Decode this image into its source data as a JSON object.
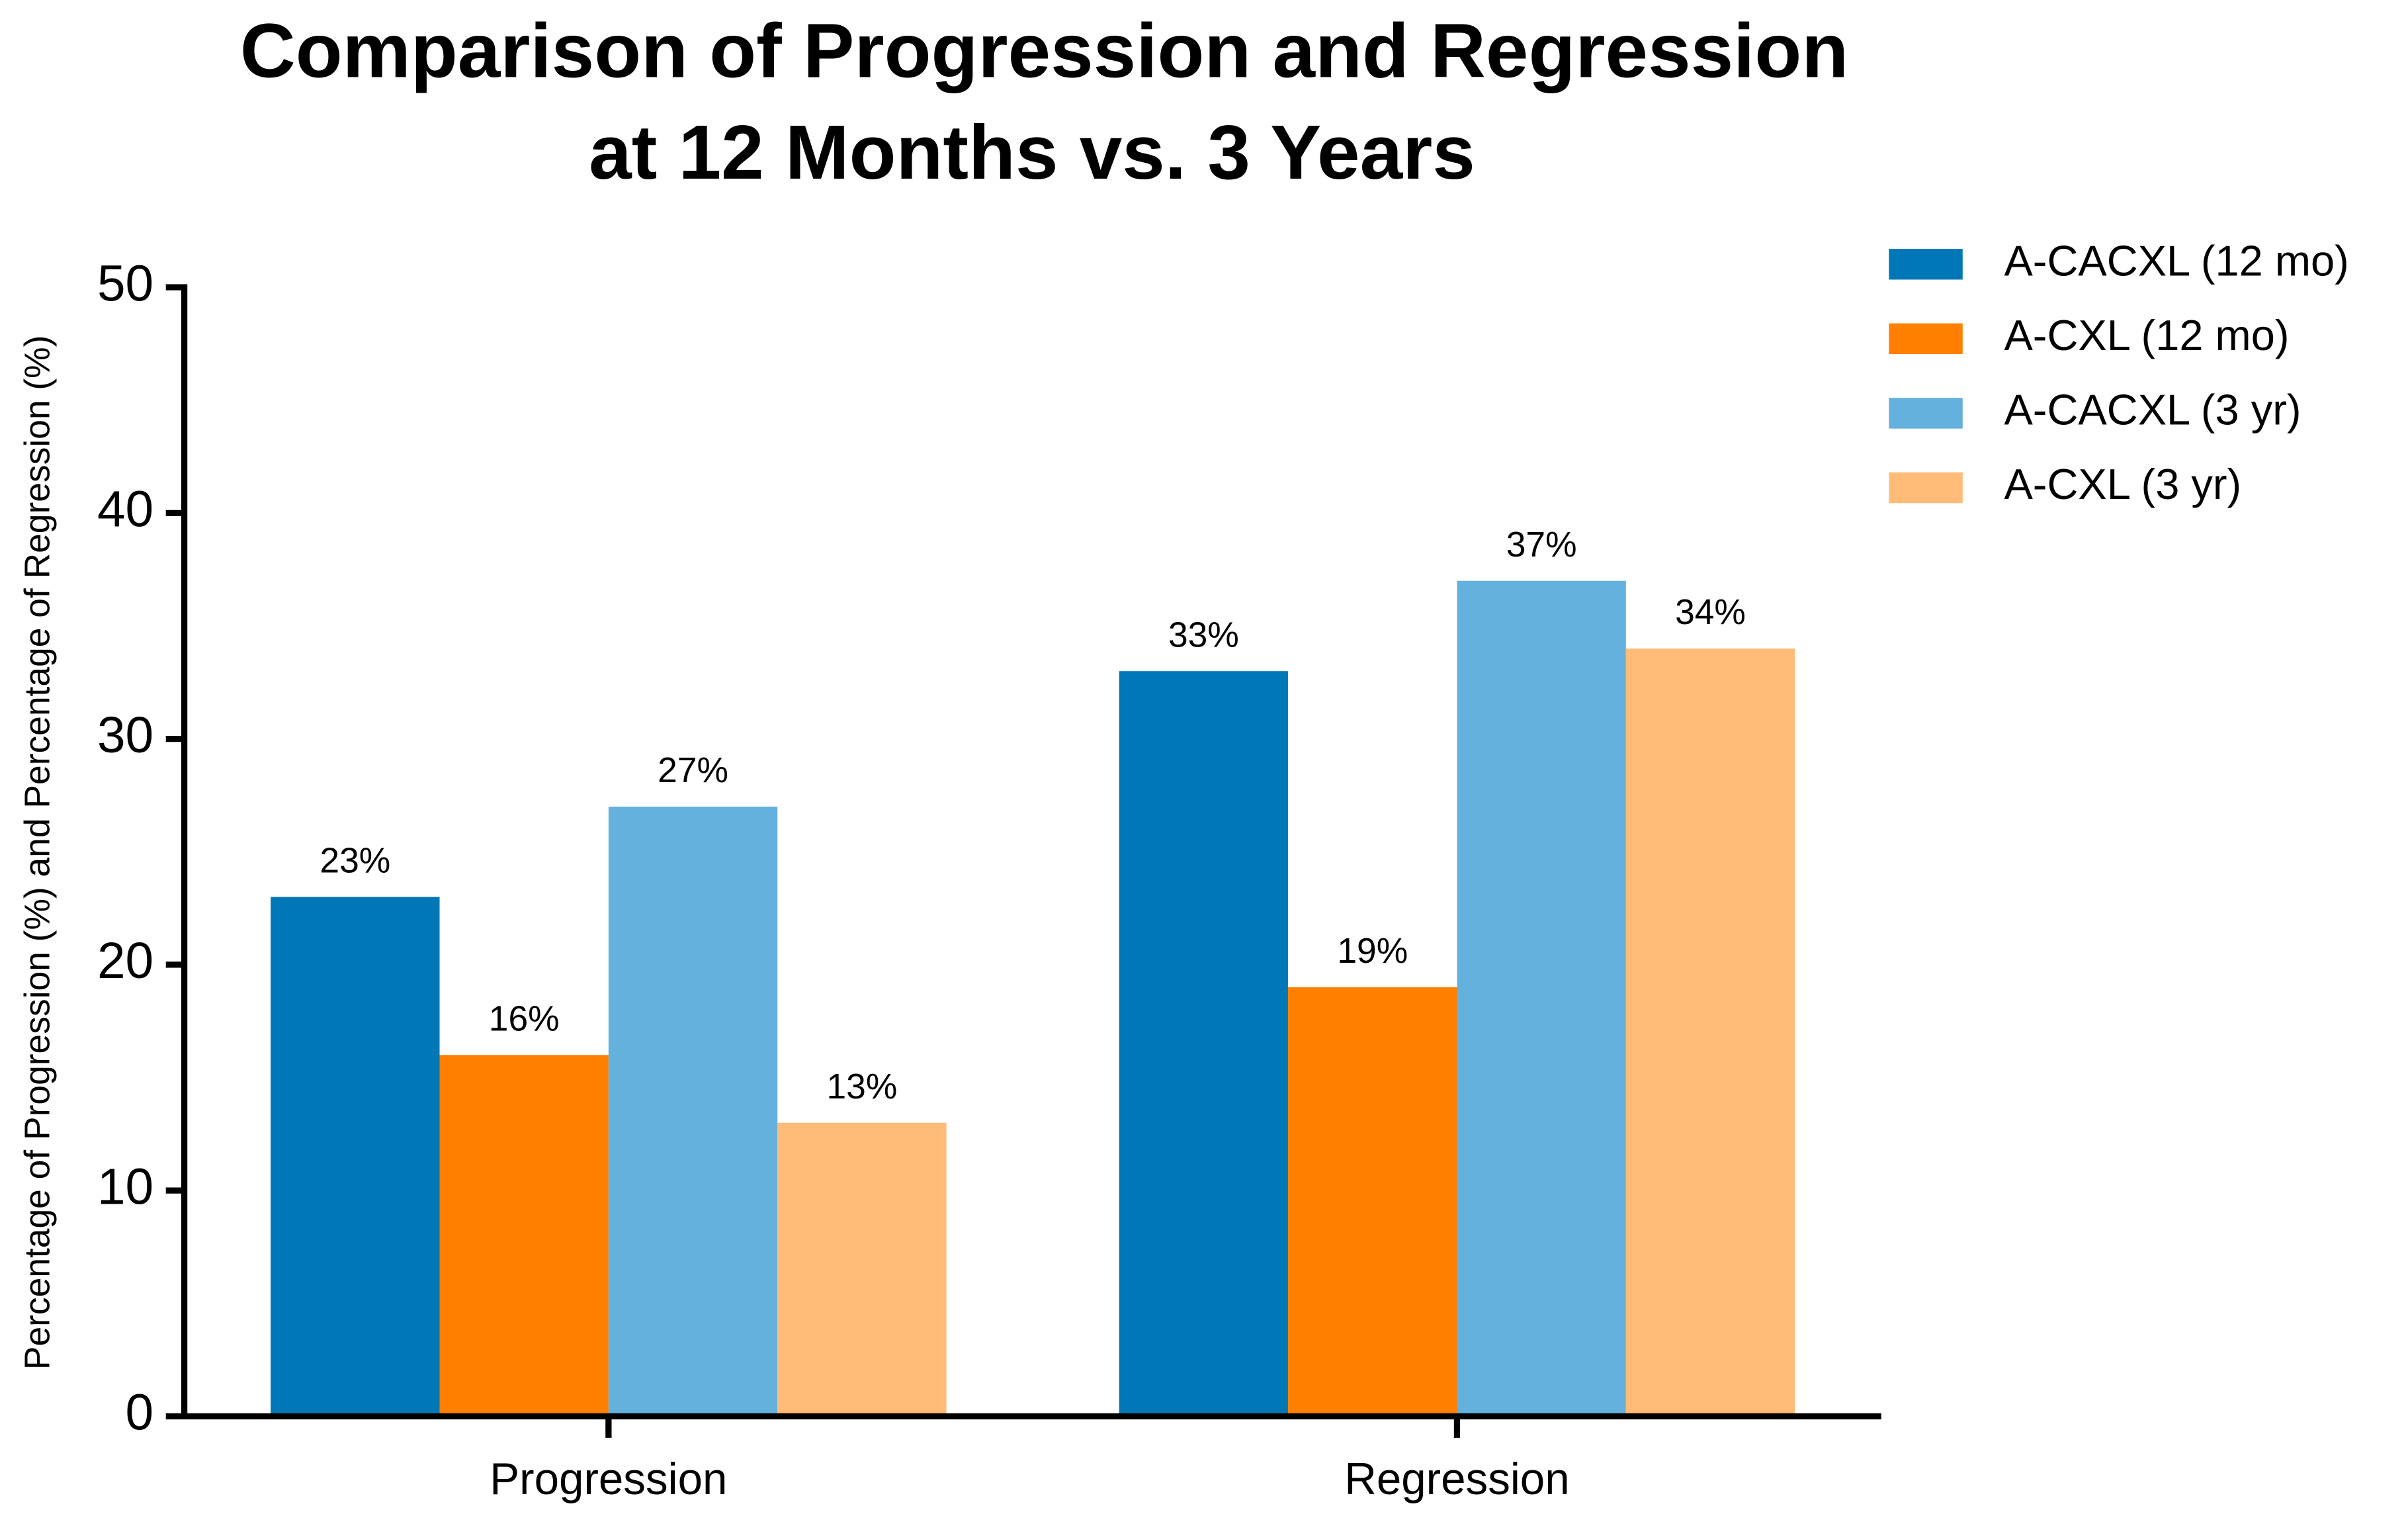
{
  "chart_data": {
    "type": "bar",
    "title": [
      "Comparison of Progression and Regression",
      "at 12 Months vs. 3 Years"
    ],
    "y_label": "Percentage of Progression (%) and Percentage of Regression (%)",
    "categories": [
      "Progression",
      "Regression"
    ],
    "series": [
      {
        "name": "A-CACXL (12 mo)",
        "color": "#0077b6",
        "values": [
          23,
          33
        ],
        "value_labels": [
          "23%",
          "33%"
        ]
      },
      {
        "name": "A-CXL (12 mo)",
        "color": "#ff7f00",
        "values": [
          16,
          19
        ],
        "value_labels": [
          "16%",
          "19%"
        ]
      },
      {
        "name": "A-CACXL (3 yr)",
        "color": "#63b1dc",
        "values": [
          27,
          37
        ],
        "value_labels": [
          "27%",
          "37%"
        ]
      },
      {
        "name": "A-CXL (3 yr)",
        "color": "#ffbb77",
        "values": [
          13,
          34
        ],
        "value_labels": [
          "13%",
          "34%"
        ]
      }
    ],
    "ylim": [
      0,
      50
    ],
    "yticks": [
      0,
      10,
      20,
      30,
      40,
      50
    ],
    "grid": false,
    "legend": "right"
  }
}
